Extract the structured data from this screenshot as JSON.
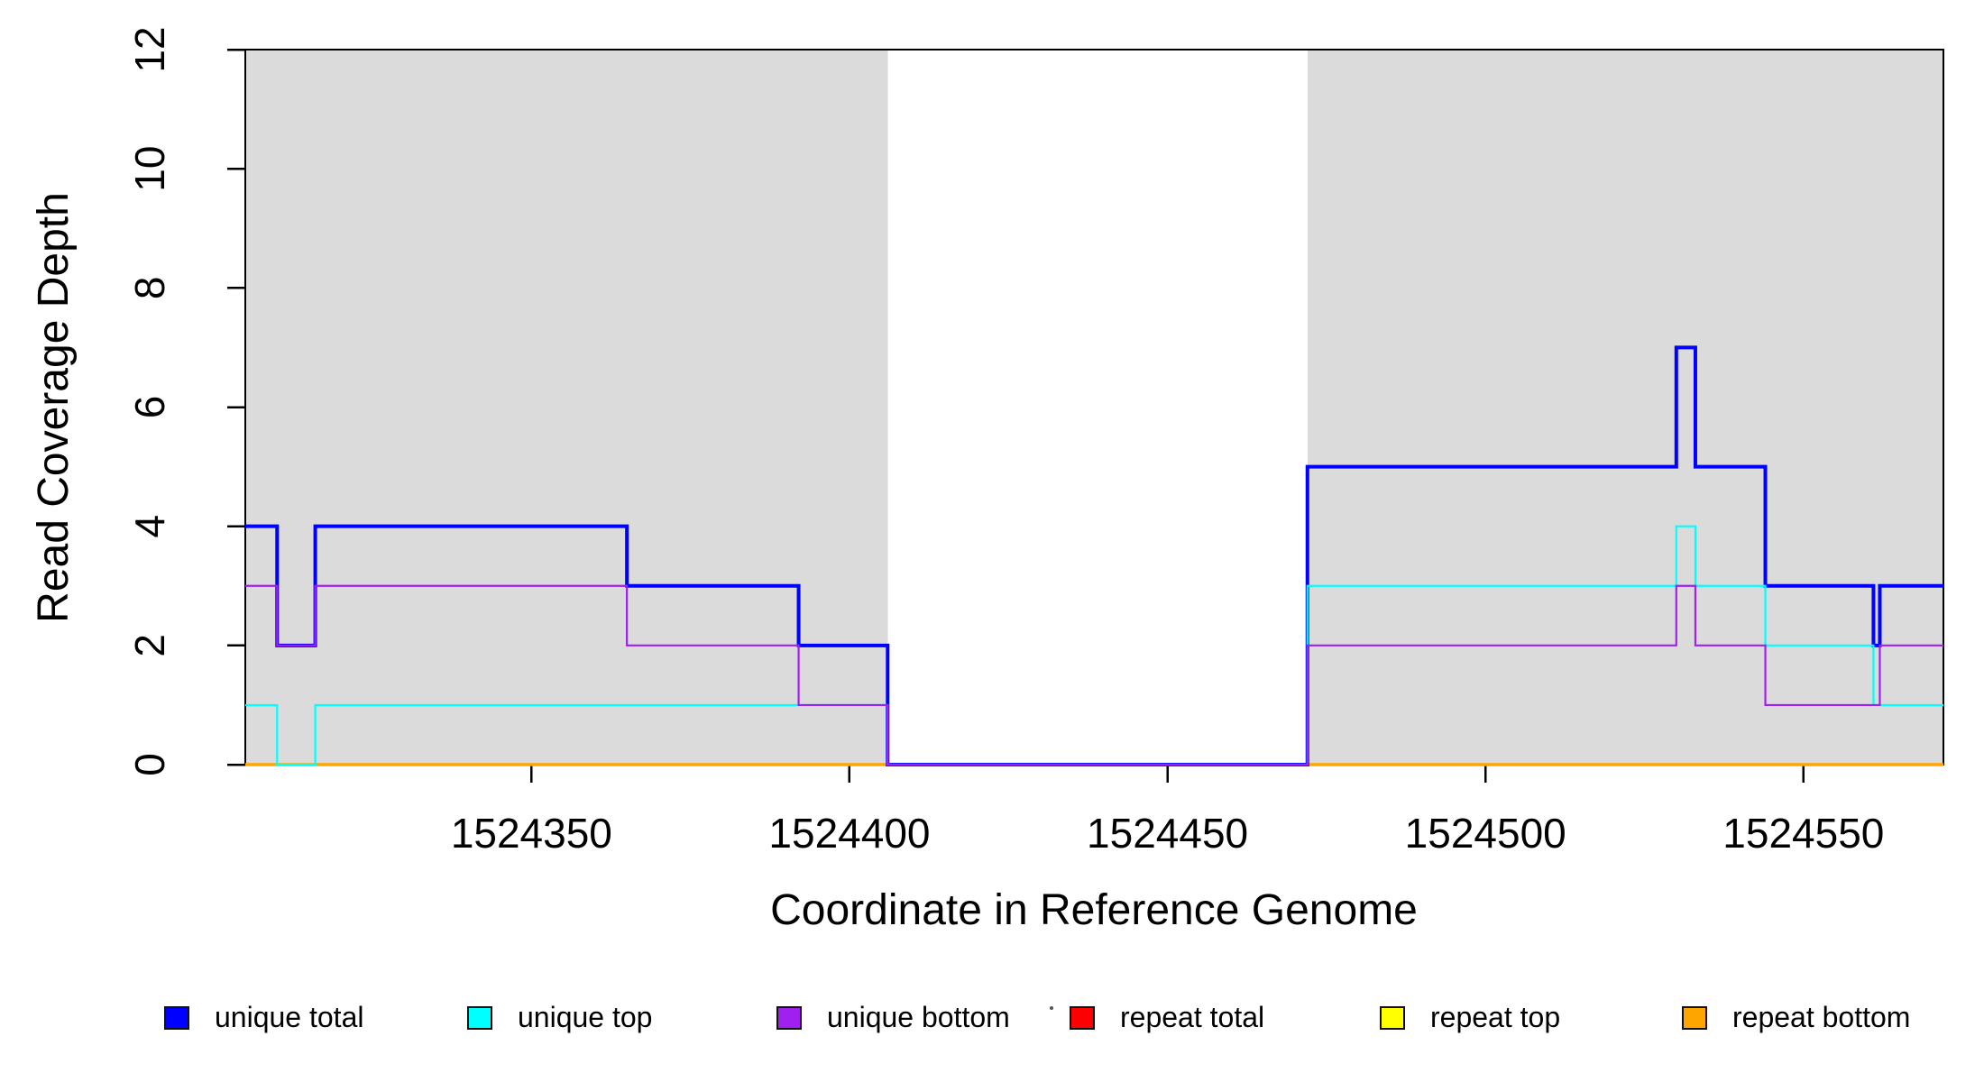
{
  "figure": {
    "xlabel": "Coordinate in Reference Genome",
    "ylabel": "Read Coverage Depth"
  },
  "legend": {
    "items": [
      {
        "label": "unique total",
        "color": "#0000FF"
      },
      {
        "label": "unique top",
        "color": "#00FFFF"
      },
      {
        "label": "unique bottom",
        "color": "#A020F0"
      },
      {
        "label": "repeat total",
        "color": "#FF0000"
      },
      {
        "label": "repeat top",
        "color": "#FFFF00"
      },
      {
        "label": "repeat bottom",
        "color": "#FFA500"
      }
    ]
  },
  "chart_data": {
    "type": "line",
    "subtype": "step",
    "title": "",
    "xlabel": "Coordinate in Reference Genome",
    "ylabel": "Read Coverage Depth",
    "xlim": [
      1524305,
      1524572
    ],
    "ylim": [
      0,
      12
    ],
    "x_ticks": [
      1524350,
      1524400,
      1524450,
      1524500,
      1524550
    ],
    "y_ticks": [
      0,
      2,
      4,
      6,
      8,
      10,
      12
    ],
    "grid": false,
    "legend_position": "bottom",
    "region_color": "#DBDBDB",
    "shaded_regions": [
      {
        "from": 1524305,
        "to": 1524406
      },
      {
        "from": 1524472,
        "to": 1524572
      }
    ],
    "series": [
      {
        "name": "repeat total",
        "color": "#FF0000",
        "width": 3,
        "steps": [
          [
            1524305,
            0
          ]
        ]
      },
      {
        "name": "repeat top",
        "color": "#FFFF00",
        "width": 3,
        "steps": [
          [
            1524305,
            0
          ]
        ]
      },
      {
        "name": "repeat bottom",
        "color": "#FFA500",
        "width": 3.5,
        "steps": [
          [
            1524305,
            0
          ]
        ]
      },
      {
        "name": "unique total",
        "color": "#0000FF",
        "width": 4,
        "steps": [
          [
            1524305,
            4
          ],
          [
            1524310,
            2
          ],
          [
            1524316,
            4
          ],
          [
            1524365,
            3
          ],
          [
            1524392,
            2
          ],
          [
            1524406,
            0
          ],
          [
            1524472,
            5
          ],
          [
            1524530,
            7
          ],
          [
            1524533,
            5
          ],
          [
            1524544,
            3
          ],
          [
            1524561,
            2
          ],
          [
            1524562,
            3
          ]
        ]
      },
      {
        "name": "unique top",
        "color": "#00FFFF",
        "width": 2.2,
        "steps": [
          [
            1524305,
            1
          ],
          [
            1524310,
            0
          ],
          [
            1524316,
            1
          ],
          [
            1524406,
            0
          ],
          [
            1524472,
            3
          ],
          [
            1524530,
            4
          ],
          [
            1524533,
            3
          ],
          [
            1524544,
            2
          ],
          [
            1524561,
            1
          ]
        ]
      },
      {
        "name": "unique bottom",
        "color": "#A020F0",
        "width": 2.2,
        "steps": [
          [
            1524305,
            3
          ],
          [
            1524310,
            2
          ],
          [
            1524316,
            3
          ],
          [
            1524365,
            2
          ],
          [
            1524392,
            1
          ],
          [
            1524406,
            0
          ],
          [
            1524472,
            2
          ],
          [
            1524530,
            3
          ],
          [
            1524533,
            2
          ],
          [
            1524544,
            1
          ],
          [
            1524562,
            2
          ]
        ]
      }
    ]
  }
}
